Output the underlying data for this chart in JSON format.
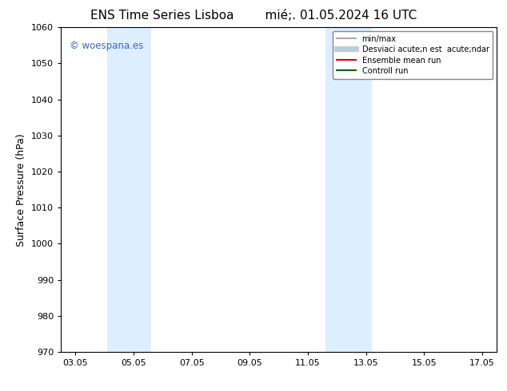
{
  "title_left": "ENS Time Series Lisboa",
  "title_right": "mié;. 01.05.2024 16 UTC",
  "ylabel": "Surface Pressure (hPa)",
  "ylim": [
    970,
    1060
  ],
  "yticks": [
    970,
    980,
    990,
    1000,
    1010,
    1020,
    1030,
    1040,
    1050,
    1060
  ],
  "xtick_labels": [
    "03.05",
    "05.05",
    "07.05",
    "09.05",
    "11.05",
    "13.05",
    "15.05",
    "17.05"
  ],
  "xtick_positions": [
    3,
    5,
    7,
    9,
    11,
    13,
    15,
    17
  ],
  "xmin": 2.5,
  "xmax": 17.5,
  "shaded_regions": [
    {
      "xmin": 4.1,
      "xmax": 5.6,
      "color": "#ddeeff"
    },
    {
      "xmin": 11.6,
      "xmax": 13.2,
      "color": "#ddeeff"
    }
  ],
  "watermark": "© woespana.es",
  "watermark_color": "#3366cc",
  "background_color": "#ffffff",
  "plot_bg_color": "#ffffff",
  "legend_entries": [
    {
      "label": "min/max",
      "color": "#aaaaaa",
      "lw": 1.5,
      "style": "-"
    },
    {
      "label": "Desviaci acute;n est  acute;ndar",
      "color": "#bbccdd",
      "lw": 5,
      "style": "-"
    },
    {
      "label": "Ensemble mean run",
      "color": "#dd0000",
      "lw": 1.5,
      "style": "-"
    },
    {
      "label": "Controll run",
      "color": "#006600",
      "lw": 1.5,
      "style": "-"
    }
  ],
  "font_family": "DejaVu Sans",
  "title_fontsize": 11,
  "tick_fontsize": 8,
  "ylabel_fontsize": 9
}
